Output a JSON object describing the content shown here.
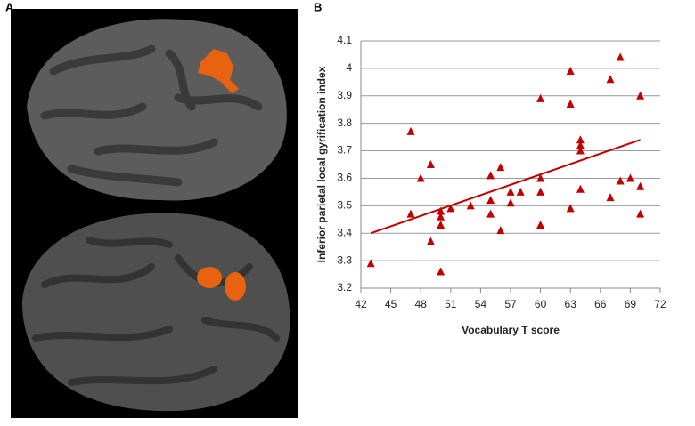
{
  "panel_labels": {
    "a": "A",
    "b": "B"
  },
  "chart_data": {
    "type": "scatter",
    "xlabel": "Vocabulary T score",
    "ylabel": "Inferior parietal local  gyrification index",
    "x": [
      43,
      47,
      47,
      48,
      49,
      49,
      50,
      50,
      50,
      50,
      51,
      53,
      55,
      55,
      55,
      56,
      56,
      57,
      57,
      58,
      60,
      60,
      60,
      60,
      63,
      63,
      63,
      64,
      64,
      64,
      64,
      67,
      67,
      68,
      68,
      69,
      70,
      70,
      70
    ],
    "values": [
      3.29,
      3.77,
      3.47,
      3.6,
      3.65,
      3.37,
      3.48,
      3.46,
      3.43,
      3.26,
      3.49,
      3.5,
      3.61,
      3.52,
      3.47,
      3.64,
      3.41,
      3.55,
      3.51,
      3.55,
      3.89,
      3.6,
      3.55,
      3.43,
      3.99,
      3.87,
      3.49,
      3.74,
      3.72,
      3.7,
      3.56,
      3.96,
      3.53,
      4.04,
      3.59,
      3.6,
      3.9,
      3.57,
      3.47
    ],
    "color": "#c00000",
    "trendline": {
      "x": [
        43,
        70
      ],
      "values": [
        3.4,
        3.74
      ],
      "color": "#c00000"
    },
    "xlim": [
      42,
      72
    ],
    "xticks": [
      42,
      45,
      48,
      51,
      54,
      57,
      60,
      63,
      66,
      69,
      72
    ],
    "ylim": [
      3.2,
      4.1
    ],
    "yticks": [
      3.2,
      3.3,
      3.4,
      3.5,
      3.6,
      3.7,
      3.8,
      3.9,
      4,
      4.1
    ],
    "grid": true
  }
}
